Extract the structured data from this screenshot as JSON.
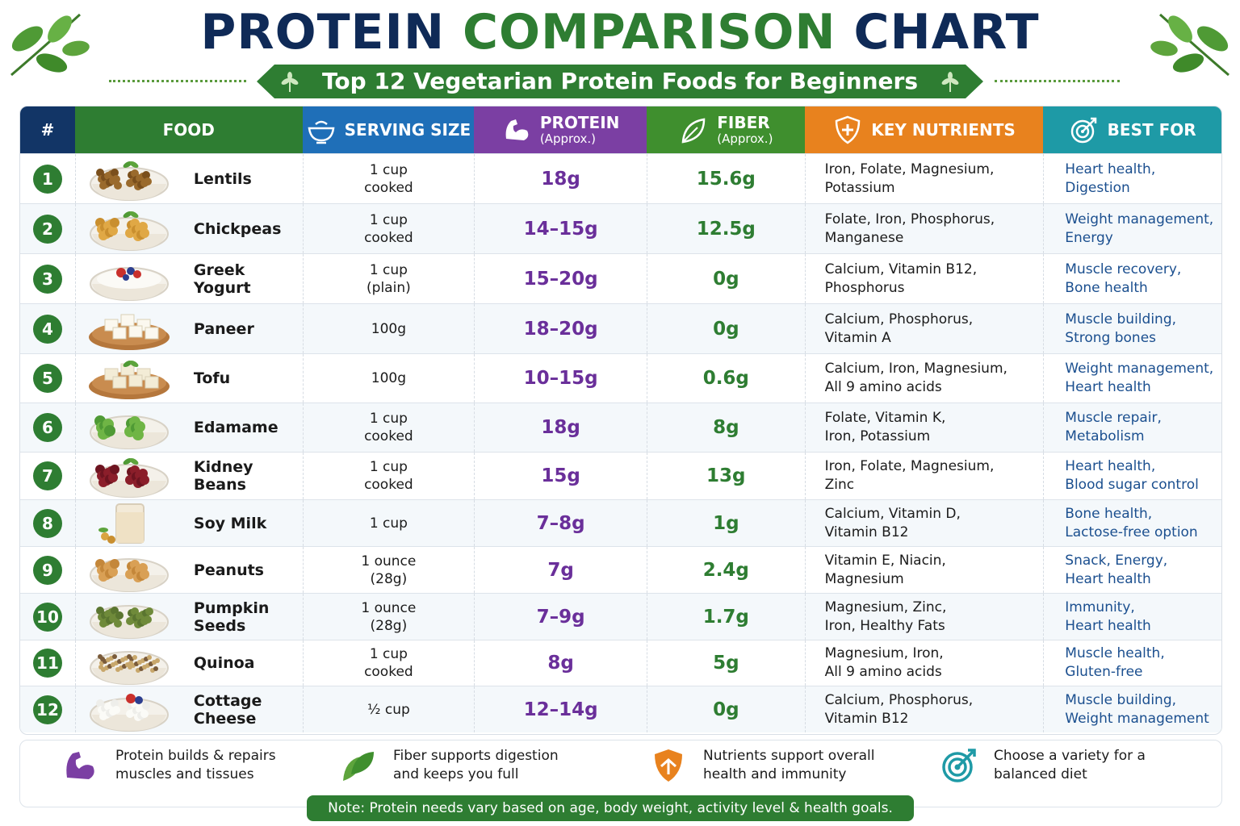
{
  "header": {
    "title_part1": "PROTEIN",
    "title_part2": "COMPARISON",
    "title_part3": "CHART",
    "subtitle": "Top 12 Vegetarian Protein Foods for Beginners"
  },
  "columns": {
    "num": "#",
    "food": "FOOD",
    "serving": "SERVING SIZE",
    "protein": "PROTEIN",
    "protein_sub": "(Approx.)",
    "fiber": "FIBER",
    "fiber_sub": "(Approx.)",
    "nutrients": "KEY NUTRIENTS",
    "best_for": "BEST FOR"
  },
  "colors": {
    "navy": "#0f2a57",
    "green": "#2e7d32",
    "blue": "#1f6fb8",
    "purple": "#7b3fa3",
    "orange": "#e8821e",
    "teal": "#1e9aa6"
  },
  "rows": [
    {
      "n": "1",
      "food": "Lentils",
      "serving": "1 cup\ncooked",
      "protein": "18g",
      "fiber": "15.6g",
      "nutrients": "Iron, Folate, Magnesium,\nPotassium",
      "best": "Heart health,\nDigestion",
      "icon": "lentils-bowl"
    },
    {
      "n": "2",
      "food": "Chickpeas",
      "serving": "1 cup\ncooked",
      "protein": "14–15g",
      "fiber": "12.5g",
      "nutrients": "Folate, Iron, Phosphorus,\nManganese",
      "best": "Weight management,\nEnergy",
      "icon": "chickpeas-bowl"
    },
    {
      "n": "3",
      "food": "Greek Yogurt",
      "serving": "1 cup\n(plain)",
      "protein": "15–20g",
      "fiber": "0g",
      "nutrients": "Calcium, Vitamin B12,\nPhosphorus",
      "best": "Muscle recovery,\nBone health",
      "icon": "yogurt-bowl"
    },
    {
      "n": "4",
      "food": "Paneer",
      "serving": "100g",
      "protein": "18–20g",
      "fiber": "0g",
      "nutrients": "Calcium, Phosphorus,\nVitamin A",
      "best": "Muscle building,\nStrong bones",
      "icon": "paneer-plate"
    },
    {
      "n": "5",
      "food": "Tofu",
      "serving": "100g",
      "protein": "10–15g",
      "fiber": "0.6g",
      "nutrients": "Calcium, Iron, Magnesium,\nAll 9 amino acids",
      "best": "Weight management,\nHeart health",
      "icon": "tofu-plate"
    },
    {
      "n": "6",
      "food": "Edamame",
      "serving": "1 cup\ncooked",
      "protein": "18g",
      "fiber": "8g",
      "nutrients": "Folate, Vitamin K,\nIron, Potassium",
      "best": "Muscle repair,\nMetabolism",
      "icon": "edamame-bowl"
    },
    {
      "n": "7",
      "food": "Kidney Beans",
      "serving": "1 cup\ncooked",
      "protein": "15g",
      "fiber": "13g",
      "nutrients": "Iron, Folate, Magnesium,\nZinc",
      "best": "Heart health,\nBlood sugar control",
      "icon": "kidney-beans-bowl"
    },
    {
      "n": "8",
      "food": "Soy Milk",
      "serving": "1 cup",
      "protein": "7–8g",
      "fiber": "1g",
      "nutrients": "Calcium, Vitamin D,\nVitamin B12",
      "best": "Bone health,\nLactose-free option",
      "icon": "soy-milk-glass"
    },
    {
      "n": "9",
      "food": "Peanuts",
      "serving": "1 ounce\n(28g)",
      "protein": "7g",
      "fiber": "2.4g",
      "nutrients": "Vitamin E, Niacin,\nMagnesium",
      "best": "Snack, Energy,\nHeart health",
      "icon": "peanuts-bowl"
    },
    {
      "n": "10",
      "food": "Pumpkin Seeds",
      "serving": "1 ounce\n(28g)",
      "protein": "7–9g",
      "fiber": "1.7g",
      "nutrients": "Magnesium, Zinc,\nIron, Healthy Fats",
      "best": "Immunity,\nHeart health",
      "icon": "pumpkin-seeds-bowl"
    },
    {
      "n": "11",
      "food": "Quinoa",
      "serving": "1 cup\ncooked",
      "protein": "8g",
      "fiber": "5g",
      "nutrients": "Magnesium, Iron,\nAll 9 amino acids",
      "best": "Muscle health,\nGluten-free",
      "icon": "quinoa-bowl"
    },
    {
      "n": "12",
      "food": "Cottage Cheese",
      "serving": "½ cup",
      "protein": "12–14g",
      "fiber": "0g",
      "nutrients": "Calcium, Phosphorus,\nVitamin B12",
      "best": "Muscle building,\nWeight management",
      "icon": "cottage-cheese-bowl"
    }
  ],
  "footer": {
    "tip_protein": "Protein builds & repairs\nmuscles and tissues",
    "tip_fiber": "Fiber supports digestion\nand keeps you full",
    "tip_nutrients": "Nutrients support overall\nhealth and immunity",
    "tip_variety": "Choose a variety for a\nbalanced diet",
    "note": "Note: Protein needs vary based on age, body weight, activity level & health goals."
  }
}
